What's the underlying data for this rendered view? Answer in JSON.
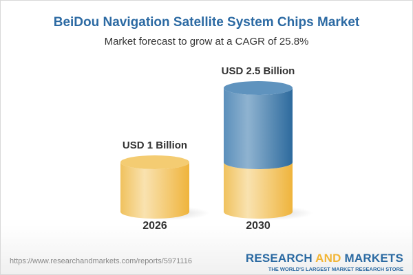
{
  "title": "BeiDou Navigation Satellite System Chips Market",
  "subtitle": "Market forecast to grow at a CAGR of 25.8%",
  "chart_data": {
    "type": "bar",
    "style": "3d-cylinder",
    "categories": [
      "2026",
      "2030"
    ],
    "values": [
      1,
      2.5
    ],
    "unit": "USD Billion",
    "data_labels": [
      "USD 1 Billion",
      "USD 2.5 Billion"
    ],
    "colors": {
      "base": "#f2c45a",
      "growth": "#3f7fb3"
    }
  },
  "footer": {
    "url": "https://www.researchandmarkets.com/reports/5971116",
    "logo_research": "RESEARCH",
    "logo_and": "AND",
    "logo_markets": "MARKETS",
    "logo_tagline": "THE WORLD'S LARGEST MARKET RESEARCH STORE"
  }
}
